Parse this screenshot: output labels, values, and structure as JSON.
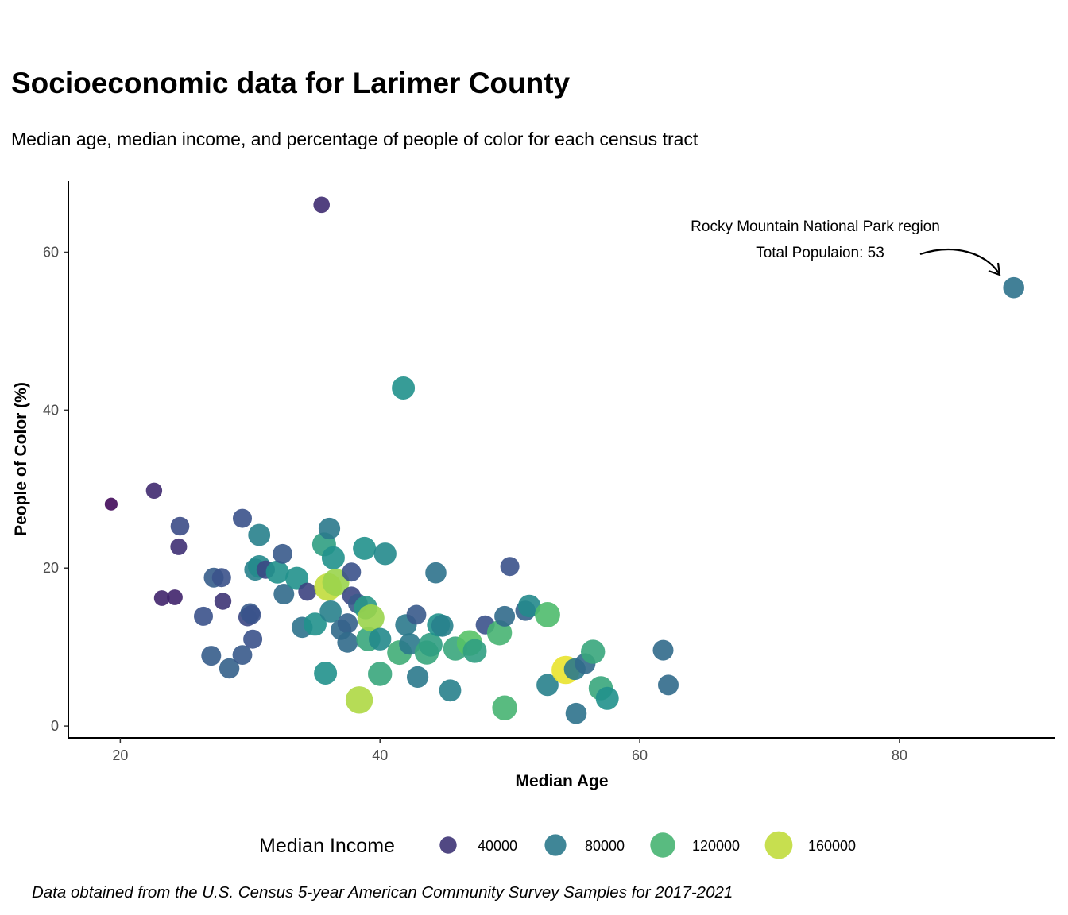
{
  "title": "Socioeconomic data for Larimer County",
  "subtitle": "Median age, median income, and percentage of people of color for each census tract",
  "caption": "Data obtained from the U.S. Census 5-year American Community Survey Samples for 2017-2021",
  "chart_data": {
    "type": "scatter",
    "xlabel": "Median Age",
    "ylabel": "People of Color (%)",
    "xlim": [
      16,
      92
    ],
    "ylim": [
      -1.5,
      69
    ],
    "x_ticks": [
      20,
      40,
      60,
      80
    ],
    "y_ticks": [
      0,
      20,
      40,
      60
    ],
    "grid": false,
    "size_legend": {
      "title": "Median Income",
      "position": "bottom",
      "levels": [
        {
          "label": "40000",
          "value": 40000
        },
        {
          "label": "80000",
          "value": 80000
        },
        {
          "label": "120000",
          "value": 120000
        },
        {
          "label": "160000",
          "value": 160000
        }
      ]
    },
    "annotation": {
      "lines": [
        "Rocky Mountain National Park region",
        "Total Populaion: 53"
      ],
      "points_to": [
        88.8,
        55.5
      ]
    },
    "points": [
      {
        "x": 19.3,
        "y": 28.1,
        "income": 20000
      },
      {
        "x": 22.6,
        "y": 29.8,
        "income": 35000
      },
      {
        "x": 24.6,
        "y": 25.3,
        "income": 52000
      },
      {
        "x": 24.5,
        "y": 22.7,
        "income": 38000
      },
      {
        "x": 23.2,
        "y": 16.2,
        "income": 32000
      },
      {
        "x": 24.2,
        "y": 16.3,
        "income": 32000
      },
      {
        "x": 35.5,
        "y": 66.0,
        "income": 36000
      },
      {
        "x": 88.8,
        "y": 55.5,
        "income": 75000
      },
      {
        "x": 41.8,
        "y": 42.8,
        "income": 95000
      },
      {
        "x": 26.4,
        "y": 13.9,
        "income": 55000
      },
      {
        "x": 27.0,
        "y": 8.9,
        "income": 62000
      },
      {
        "x": 27.2,
        "y": 18.8,
        "income": 62000
      },
      {
        "x": 27.8,
        "y": 18.8,
        "income": 55000
      },
      {
        "x": 27.9,
        "y": 15.8,
        "income": 40000
      },
      {
        "x": 28.4,
        "y": 7.3,
        "income": 65000
      },
      {
        "x": 29.4,
        "y": 26.3,
        "income": 55000
      },
      {
        "x": 29.4,
        "y": 9.0,
        "income": 60000
      },
      {
        "x": 29.8,
        "y": 13.8,
        "income": 50000
      },
      {
        "x": 30.0,
        "y": 14.3,
        "income": 60000
      },
      {
        "x": 30.2,
        "y": 11.0,
        "income": 55000
      },
      {
        "x": 30.1,
        "y": 14.1,
        "income": 55000
      },
      {
        "x": 30.4,
        "y": 19.8,
        "income": 85000
      },
      {
        "x": 30.7,
        "y": 24.2,
        "income": 85000
      },
      {
        "x": 30.7,
        "y": 20.2,
        "income": 90000
      },
      {
        "x": 31.2,
        "y": 19.8,
        "income": 50000
      },
      {
        "x": 32.1,
        "y": 19.5,
        "income": 95000
      },
      {
        "x": 32.5,
        "y": 21.8,
        "income": 60000
      },
      {
        "x": 32.6,
        "y": 16.7,
        "income": 70000
      },
      {
        "x": 33.6,
        "y": 18.7,
        "income": 95000
      },
      {
        "x": 34.0,
        "y": 12.5,
        "income": 75000
      },
      {
        "x": 34.4,
        "y": 17.0,
        "income": 48000
      },
      {
        "x": 35.0,
        "y": 12.9,
        "income": 95000
      },
      {
        "x": 35.7,
        "y": 23.0,
        "income": 105000
      },
      {
        "x": 35.8,
        "y": 6.7,
        "income": 95000
      },
      {
        "x": 36.1,
        "y": 25.0,
        "income": 80000
      },
      {
        "x": 36.0,
        "y": 17.6,
        "income": 160000
      },
      {
        "x": 36.2,
        "y": 14.5,
        "income": 85000
      },
      {
        "x": 36.4,
        "y": 21.3,
        "income": 95000
      },
      {
        "x": 36.6,
        "y": 18.2,
        "income": 150000
      },
      {
        "x": 37.0,
        "y": 12.2,
        "income": 70000
      },
      {
        "x": 37.5,
        "y": 13.0,
        "income": 65000
      },
      {
        "x": 37.5,
        "y": 10.6,
        "income": 70000
      },
      {
        "x": 37.8,
        "y": 19.5,
        "income": 55000
      },
      {
        "x": 37.8,
        "y": 16.5,
        "income": 50000
      },
      {
        "x": 38.3,
        "y": 15.5,
        "income": 60000
      },
      {
        "x": 38.4,
        "y": 3.3,
        "income": 155000
      },
      {
        "x": 38.8,
        "y": 22.5,
        "income": 95000
      },
      {
        "x": 38.9,
        "y": 15.0,
        "income": 100000
      },
      {
        "x": 39.1,
        "y": 11.0,
        "income": 110000
      },
      {
        "x": 39.3,
        "y": 13.7,
        "income": 150000
      },
      {
        "x": 40.0,
        "y": 11.0,
        "income": 90000
      },
      {
        "x": 40.0,
        "y": 6.6,
        "income": 110000
      },
      {
        "x": 40.4,
        "y": 21.8,
        "income": 90000
      },
      {
        "x": 41.5,
        "y": 9.3,
        "income": 115000
      },
      {
        "x": 42.0,
        "y": 12.8,
        "income": 80000
      },
      {
        "x": 42.3,
        "y": 10.4,
        "income": 80000
      },
      {
        "x": 42.8,
        "y": 14.1,
        "income": 60000
      },
      {
        "x": 42.9,
        "y": 6.2,
        "income": 80000
      },
      {
        "x": 43.6,
        "y": 9.3,
        "income": 110000
      },
      {
        "x": 43.9,
        "y": 10.3,
        "income": 105000
      },
      {
        "x": 44.3,
        "y": 19.4,
        "income": 75000
      },
      {
        "x": 44.5,
        "y": 12.8,
        "income": 95000
      },
      {
        "x": 44.8,
        "y": 12.7,
        "income": 85000
      },
      {
        "x": 45.4,
        "y": 4.5,
        "income": 85000
      },
      {
        "x": 45.8,
        "y": 9.8,
        "income": 110000
      },
      {
        "x": 46.9,
        "y": 10.5,
        "income": 130000
      },
      {
        "x": 47.3,
        "y": 9.5,
        "income": 105000
      },
      {
        "x": 48.1,
        "y": 12.8,
        "income": 55000
      },
      {
        "x": 49.2,
        "y": 11.8,
        "income": 120000
      },
      {
        "x": 49.6,
        "y": 13.9,
        "income": 70000
      },
      {
        "x": 49.6,
        "y": 2.3,
        "income": 120000
      },
      {
        "x": 50.0,
        "y": 20.2,
        "income": 55000
      },
      {
        "x": 51.2,
        "y": 14.6,
        "income": 65000
      },
      {
        "x": 51.5,
        "y": 15.2,
        "income": 90000
      },
      {
        "x": 52.9,
        "y": 14.1,
        "income": 125000
      },
      {
        "x": 52.9,
        "y": 5.2,
        "income": 85000
      },
      {
        "x": 54.3,
        "y": 7.1,
        "income": 170000
      },
      {
        "x": 55.0,
        "y": 7.2,
        "income": 80000
      },
      {
        "x": 55.1,
        "y": 1.6,
        "income": 75000
      },
      {
        "x": 55.8,
        "y": 7.9,
        "income": 70000
      },
      {
        "x": 56.4,
        "y": 9.4,
        "income": 110000
      },
      {
        "x": 57.0,
        "y": 4.8,
        "income": 110000
      },
      {
        "x": 57.5,
        "y": 3.5,
        "income": 95000
      },
      {
        "x": 61.8,
        "y": 9.6,
        "income": 70000
      },
      {
        "x": 62.2,
        "y": 5.2,
        "income": 70000
      }
    ]
  }
}
